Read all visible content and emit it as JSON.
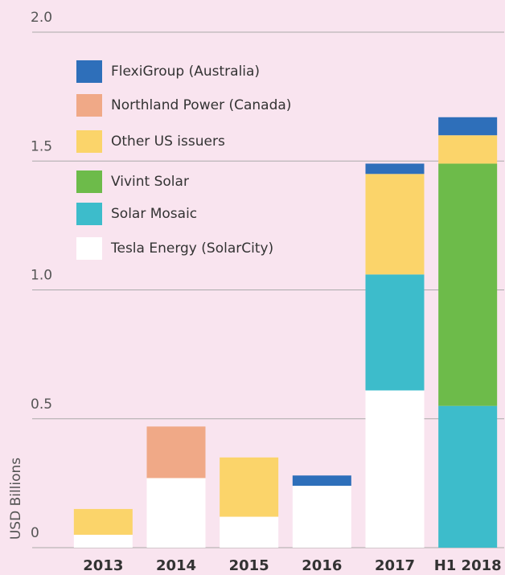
{
  "chart_data": {
    "type": "bar",
    "stacked": true,
    "y_label": "USD Billions",
    "categories": [
      "2013",
      "2014",
      "2015",
      "2016",
      "2017",
      "H1 2018"
    ],
    "series": [
      {
        "name": "FlexiGroup (Australia)",
        "color": "#2e6fba",
        "values": [
          null,
          null,
          null,
          0.04,
          0.04,
          0.07
        ]
      },
      {
        "name": "Northland Power (Canada)",
        "color": "#f0a987",
        "values": [
          null,
          0.2,
          null,
          null,
          null,
          null
        ]
      },
      {
        "name": "Other US issuers",
        "color": "#fbd46a",
        "values": [
          0.1,
          null,
          0.23,
          null,
          0.39,
          0.11
        ]
      },
      {
        "name": "Vivint Solar",
        "color": "#6dbb4a",
        "values": [
          null,
          null,
          null,
          null,
          null,
          0.94
        ]
      },
      {
        "name": "Solar Mosaic",
        "color": "#3dbccb",
        "values": [
          null,
          null,
          null,
          null,
          0.45,
          0.55
        ]
      },
      {
        "name": "Tesla Energy (SolarCity)",
        "color": "#ffffff",
        "values": [
          0.05,
          0.27,
          0.12,
          0.24,
          0.61,
          null
        ]
      }
    ],
    "ylim": [
      0,
      2
    ],
    "yticks": [
      0,
      0.5,
      {
        "value": 1,
        "label": "1.0"
      },
      1.5,
      {
        "value": 2,
        "label": "2.0"
      }
    ],
    "grid": true
  }
}
